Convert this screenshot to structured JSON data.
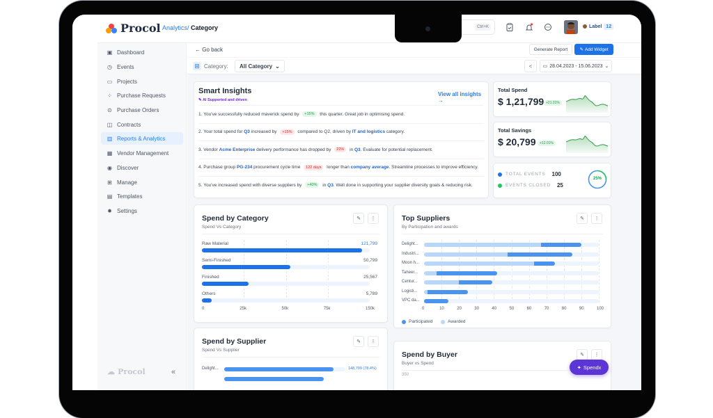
{
  "app": {
    "logo_text": "Procol",
    "breadcrumb": {
      "parent": "Analytics/",
      "current": "Category"
    },
    "search": {
      "placeholder": "Search",
      "shortcut": "Ctrl+K"
    },
    "topbar_icons": [
      "clipboard-icon",
      "bell-icon",
      "chat-icon"
    ],
    "user_label": {
      "text": "Label",
      "count": "12"
    }
  },
  "sidebar": {
    "items": [
      {
        "label": "Dashboard",
        "icon": "dashboard-icon",
        "active": false
      },
      {
        "label": "Events",
        "icon": "events-icon",
        "active": false
      },
      {
        "label": "Projects",
        "icon": "folder-icon",
        "active": false
      },
      {
        "label": "Purchase Requests",
        "icon": "requests-icon",
        "active": false
      },
      {
        "label": "Purchase Orders",
        "icon": "rupee-icon",
        "active": false
      },
      {
        "label": "Contracts",
        "icon": "book-icon",
        "active": false
      },
      {
        "label": "Reports & Analytics",
        "icon": "bar-chart-icon",
        "active": true
      },
      {
        "label": "Vendor Management",
        "icon": "vendor-icon",
        "active": false
      },
      {
        "label": "Discover",
        "icon": "eye-icon",
        "active": false
      },
      {
        "label": "Manage",
        "icon": "grid-icon",
        "active": false
      },
      {
        "label": "Templates",
        "icon": "template-icon",
        "active": false
      },
      {
        "label": "Settings",
        "icon": "gear-icon",
        "active": false
      }
    ],
    "footer_logo": "Procol",
    "collapse": "«"
  },
  "toolbar": {
    "go_back": "← Go back",
    "generate_report": "Generate Report",
    "add_widget": "Add Widget",
    "category_label": "Category:",
    "category_value": "All Category",
    "date_range": "28.04.2023 - 15.06.2023"
  },
  "smart_insights": {
    "title": "Smart Insights",
    "subtitle": "AI Supported and driven",
    "view_all": "View all insights →",
    "items": [
      {
        "n": "1.",
        "parts": [
          [
            "t",
            "You've successfully reduced maverick spend by "
          ],
          [
            "g",
            "+15%"
          ],
          [
            "t",
            " this quarter. Great job in optimising spend."
          ]
        ]
      },
      {
        "n": "2.",
        "parts": [
          [
            "t",
            "Your total spend for "
          ],
          [
            "b",
            "Q3"
          ],
          [
            "t",
            " increased by "
          ],
          [
            "r",
            "+15%"
          ],
          [
            "t",
            " compared to Q2, driven by "
          ],
          [
            "b",
            "IT and logistics"
          ],
          [
            "t",
            " category."
          ]
        ]
      },
      {
        "n": "3.",
        "parts": [
          [
            "t",
            "Vendor "
          ],
          [
            "b",
            "Acme Enterprise"
          ],
          [
            "t",
            " delivery performance has dropped by "
          ],
          [
            "r",
            "22%"
          ],
          [
            "t",
            " in "
          ],
          [
            "b",
            "Q3"
          ],
          [
            "t",
            ". Evaluate for potential replacement."
          ]
        ]
      },
      {
        "n": "4.",
        "parts": [
          [
            "t",
            "Purchase group "
          ],
          [
            "b",
            "PG-234"
          ],
          [
            "t",
            " procurement cycle time "
          ],
          [
            "r",
            "122 days"
          ],
          [
            "t",
            " longer than "
          ],
          [
            "b",
            "company average"
          ],
          [
            "t",
            ". Streamline processes to improve efficiency."
          ]
        ]
      },
      {
        "n": "5.",
        "parts": [
          [
            "t",
            "You've increased spend with diverse suppliers by "
          ],
          [
            "g",
            "+40%"
          ],
          [
            "t",
            " in "
          ],
          [
            "b",
            "Q3"
          ],
          [
            "t",
            ". Well done in supporting your supplier diversity goals & reducing risk."
          ]
        ]
      }
    ]
  },
  "kpis": {
    "total_spend": {
      "label": "Total Spend",
      "value": "$ 1,21,799",
      "change": "+21.01%"
    },
    "total_savings": {
      "label": "Total Savings",
      "value": "$ 20,799",
      "change": "+12.01%"
    },
    "events": {
      "total_label": "TOTAL EVENTS",
      "total": "100",
      "closed_label": "EVENTS CLOSED",
      "closed": "25",
      "percent": "25%"
    }
  },
  "chart_data": [
    {
      "type": "bar",
      "orientation": "horizontal",
      "title": "Spend by Category",
      "subtitle": "Spend Vs Category",
      "categories": [
        "Raw Material",
        "Semi-Finished",
        "Finished",
        "Others"
      ],
      "values": [
        121799,
        50799,
        25567,
        5789
      ],
      "value_labels": [
        "121,799",
        "50,799",
        "25,567",
        "5,789"
      ],
      "xticks": [
        "0",
        "25k",
        "50k",
        "75k",
        "150k"
      ],
      "xlim": [
        0,
        150000
      ]
    },
    {
      "type": "bar",
      "orientation": "horizontal",
      "stacked": true,
      "title": "Top Suppliers",
      "subtitle": "By Participation and awards",
      "categories": [
        "Delight...",
        "Industri...",
        "Moon h...",
        "Taheer...",
        "Centur...",
        "Logisti...",
        "VPC da..."
      ],
      "series": [
        {
          "name": "Awarded",
          "values": [
            67,
            48,
            63,
            7,
            20,
            2,
            0
          ]
        },
        {
          "name": "Participated",
          "values": [
            90,
            85,
            75,
            42,
            39,
            25,
            14
          ]
        }
      ],
      "xticks": [
        "0",
        "10",
        "20",
        "30",
        "40",
        "50",
        "60",
        "70",
        "80",
        "90",
        "100"
      ],
      "xlim": [
        0,
        100
      ],
      "legend": [
        "Participated",
        "Awarded"
      ]
    },
    {
      "type": "bar",
      "orientation": "horizontal",
      "title": "Spend by Supplier",
      "subtitle": "Spend Vs Supplier",
      "categories": [
        "Delight..."
      ],
      "values": [
        148799
      ],
      "value_labels": [
        "148,799 (78.4%)"
      ]
    },
    {
      "type": "bar",
      "title": "Spend by Buyer",
      "subtitle": "Buyer vs Spend",
      "yticks": [
        "350"
      ]
    }
  ],
  "widgets": {
    "spend_by_category": {
      "title": "Spend by Category",
      "subtitle": "Spend Vs Category"
    },
    "top_suppliers": {
      "title": "Top Suppliers",
      "subtitle": "By Participation and awards",
      "legend_participated": "Participated",
      "legend_awarded": "Awarded"
    },
    "spend_by_supplier": {
      "title": "Spend by Supplier",
      "subtitle": "Spend Vs Supplier",
      "row_label": "Delight...",
      "row_value": "148,799 (78.4%)"
    },
    "spend_by_buyer": {
      "title": "Spend by Buyer",
      "subtitle": "Buyer vs Spend",
      "ytick": "350"
    }
  },
  "assistant": {
    "label": "Spendx"
  },
  "colors": {
    "primary": "#1d72e8",
    "accent_purple": "#5b35d5",
    "positive": "#1e9e4a",
    "negative": "#dc2626",
    "awarded": "#b9d6fb",
    "participated": "#4a93ef"
  }
}
